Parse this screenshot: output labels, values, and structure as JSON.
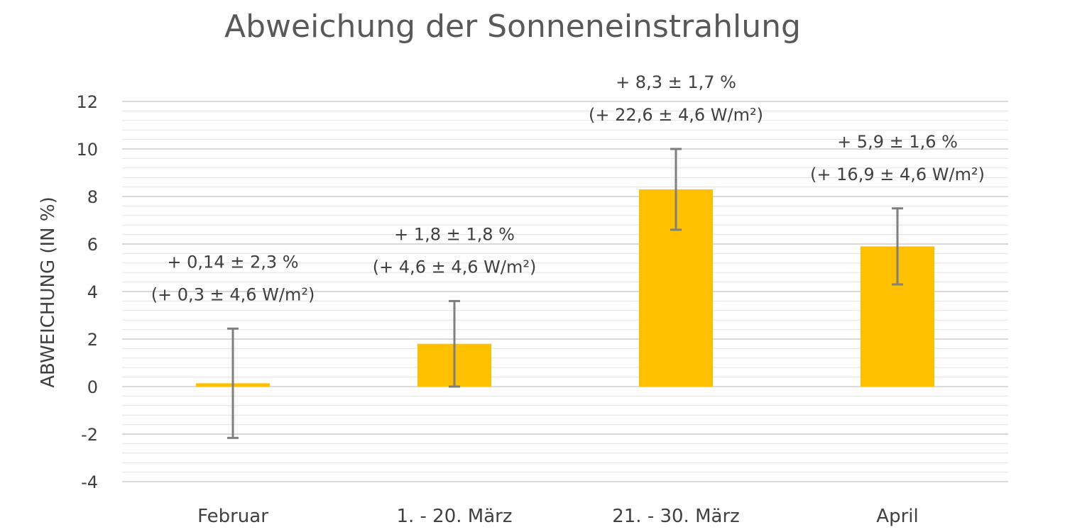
{
  "chart_data": {
    "type": "bar",
    "title": "Abweichung der Sonneneinstrahlung",
    "xlabel": "",
    "ylabel": "ABWEICHUNG (IN %)",
    "ylim": [
      -4,
      12
    ],
    "yticks": [
      "-4",
      "-2",
      "0",
      "2",
      "4",
      "6",
      "8",
      "10",
      "12"
    ],
    "minor_grid_step": 0.4,
    "grid": true,
    "categories": [
      "Februar",
      "1. - 20. März",
      "21. - 30. März",
      "April"
    ],
    "values": [
      0.14,
      1.8,
      8.3,
      5.9
    ],
    "errors": [
      2.3,
      1.8,
      1.7,
      1.6
    ],
    "bar_color": "#FFC000",
    "error_color": "#7F7F7F",
    "grid_color": "#D9D9D9",
    "data_labels": [
      {
        "line1": "+ 0,14 ± 2,3 %",
        "line2": "(+ 0,3 ± 4,6 W/m²)"
      },
      {
        "line1": "+ 1,8 ± 1,8 %",
        "line2": "(+ 4,6 ± 4,6 W/m²)"
      },
      {
        "line1": "+ 8,3 ± 1,7 %",
        "line2": "(+ 22,6 ± 4,6 W/m²)"
      },
      {
        "line1": "+ 5,9 ± 1,6 %",
        "line2": "(+ 16,9 ± 4,6 W/m²)"
      }
    ]
  }
}
